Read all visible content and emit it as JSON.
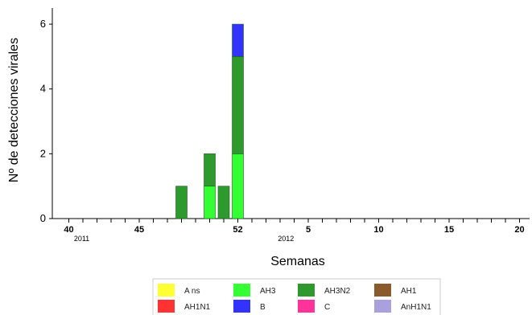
{
  "chart_data": {
    "type": "bar",
    "stacked": true,
    "xlabel": "Semanas",
    "ylabel": "Nº de detecciones virales",
    "ylim": [
      0,
      6.2
    ],
    "y_ticks": [
      0,
      2,
      4,
      6
    ],
    "x_range": [
      40,
      72
    ],
    "x_tick_labels": [
      {
        "pos": 40,
        "label": "40"
      },
      {
        "pos": 45,
        "label": "45"
      },
      {
        "pos": 52,
        "label": "52"
      },
      {
        "pos": 57,
        "label": "5"
      },
      {
        "pos": 62,
        "label": "10"
      },
      {
        "pos": 67,
        "label": "15"
      },
      {
        "pos": 72,
        "label": "20"
      }
    ],
    "year_labels": [
      {
        "pos": 40,
        "label": "2011"
      },
      {
        "pos": 54.5,
        "label": "2012"
      }
    ],
    "categories": [
      "48",
      "50",
      "51",
      "52"
    ],
    "x_positions": [
      48,
      50,
      51,
      52
    ],
    "series": [
      {
        "name": "A ns",
        "color": "#ffff33",
        "values": [
          0,
          0,
          0,
          0
        ]
      },
      {
        "name": "AH3",
        "color": "#33ff33",
        "values": [
          0,
          1,
          0,
          2
        ]
      },
      {
        "name": "AH3N2",
        "color": "#2e9a2e",
        "values": [
          1,
          1,
          1,
          3
        ]
      },
      {
        "name": "AH1",
        "color": "#8b5a2b",
        "values": [
          0,
          0,
          0,
          0
        ]
      },
      {
        "name": "AH1N1",
        "color": "#ff3333",
        "values": [
          0,
          0,
          0,
          0
        ]
      },
      {
        "name": "B",
        "color": "#3333ff",
        "values": [
          0,
          0,
          0,
          1
        ]
      },
      {
        "name": "C",
        "color": "#ff3399",
        "values": [
          0,
          0,
          0,
          0
        ]
      },
      {
        "name": "AnH1N1",
        "color": "#a9a0dd",
        "values": [
          0,
          0,
          0,
          0
        ]
      }
    ],
    "legend_placement": "bottom",
    "grid": false
  }
}
